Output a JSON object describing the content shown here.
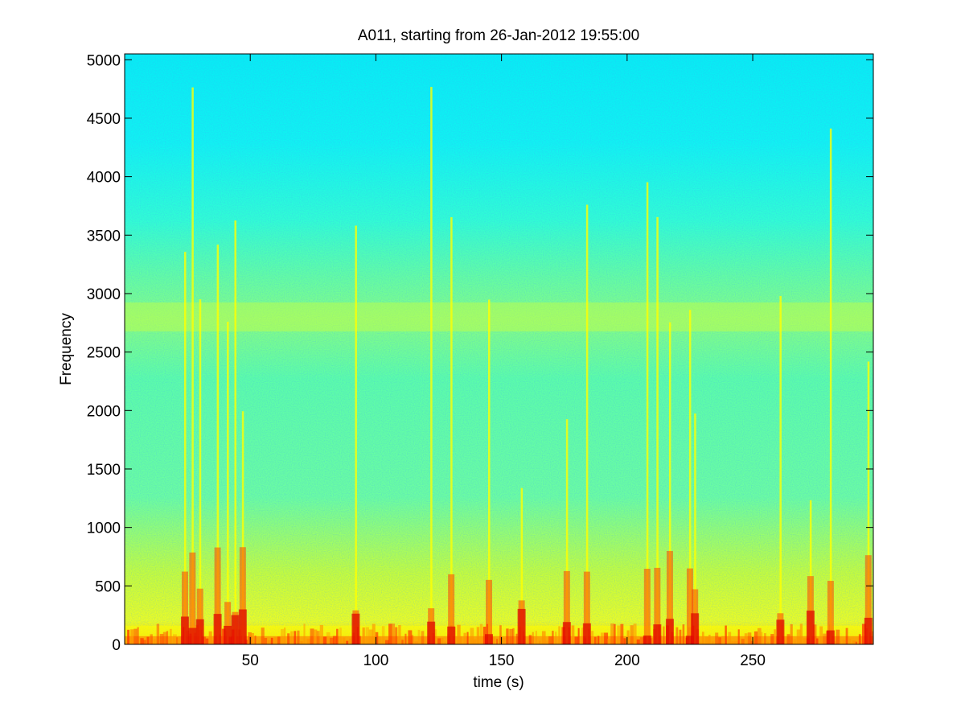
{
  "figure": {
    "background": "#ffffff"
  },
  "chart_data": {
    "type": "heatmap",
    "title": "A011, starting from 26-Jan-2012 19:55:00",
    "xlabel": "time (s)",
    "ylabel": "Frequency",
    "xlim": [
      0,
      298
    ],
    "ylim": [
      0,
      5050
    ],
    "x_ticks": [
      50,
      100,
      150,
      200,
      250
    ],
    "x_tick_labels": [
      "50",
      "100",
      "150",
      "200",
      "250"
    ],
    "y_ticks": [
      0,
      500,
      1000,
      1500,
      2000,
      2500,
      3000,
      3500,
      4000,
      4500,
      5000
    ],
    "y_tick_labels": [
      "0",
      "500",
      "1000",
      "1500",
      "2000",
      "2500",
      "3000",
      "3500",
      "4000",
      "4500",
      "5000"
    ],
    "colormap": "jet",
    "colors": {
      "cyan": "#00ffff",
      "green": "#66ff99",
      "yellow": "#ffff00",
      "red": "#ff1a00"
    },
    "broadband_events_s": [
      24,
      27,
      30,
      37,
      41,
      44,
      47,
      92,
      122,
      130,
      145,
      158,
      176,
      184,
      208,
      212,
      217,
      225,
      227,
      261,
      273,
      281,
      296
    ],
    "band_feature": {
      "name": "mid-frequency band",
      "freq_hz": 2800
    },
    "grid": false,
    "legend": "none"
  }
}
